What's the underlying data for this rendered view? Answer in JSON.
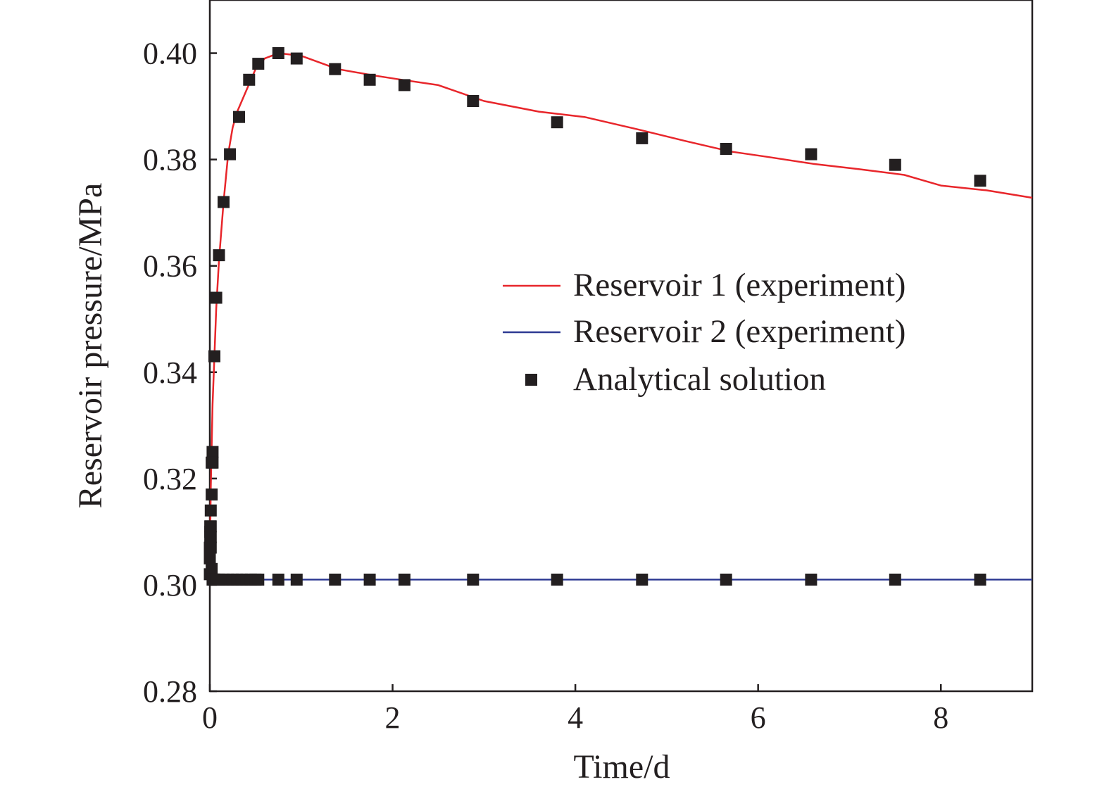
{
  "chart_data": {
    "type": "line",
    "xlabel": "Time/d",
    "ylabel": "Reservoir pressure/MPa",
    "xlim": [
      0,
      9
    ],
    "ylim": [
      0.28,
      0.41
    ],
    "x_ticks": [
      0,
      2,
      4,
      6,
      8
    ],
    "x_tick_labels": [
      "0",
      "2",
      "4",
      "6",
      "8"
    ],
    "y_ticks": [
      0.28,
      0.3,
      0.32,
      0.34,
      0.36,
      0.38,
      0.4
    ],
    "y_tick_labels": [
      "0.28",
      "0.30",
      "0.32",
      "0.34",
      "0.36",
      "0.38",
      "0.40"
    ],
    "grid": false,
    "legend_position": "right-center",
    "series": [
      {
        "name": "Reservoir 1 (experiment)",
        "kind": "line",
        "color": "#e8262b",
        "x": [
          0,
          0.005,
          0.01,
          0.02,
          0.03,
          0.05,
          0.07,
          0.1,
          0.15,
          0.2,
          0.25,
          0.3,
          0.4,
          0.5,
          0.6,
          0.75,
          1.0,
          1.4,
          1.8,
          2.1,
          2.5,
          3.0,
          3.6,
          4.1,
          4.7,
          5.2,
          5.7,
          6.1,
          6.6,
          7.1,
          7.6,
          8.0,
          8.5,
          9.0
        ],
        "y": [
          0.3,
          0.31,
          0.318,
          0.326,
          0.334,
          0.343,
          0.352,
          0.361,
          0.372,
          0.381,
          0.386,
          0.389,
          0.393,
          0.397,
          0.399,
          0.4,
          0.3995,
          0.397,
          0.3958,
          0.395,
          0.394,
          0.391,
          0.389,
          0.388,
          0.3856,
          0.3835,
          0.3815,
          0.3805,
          0.3792,
          0.3782,
          0.3771,
          0.3751,
          0.3742,
          0.3728
        ]
      },
      {
        "name": "Reservoir 2 (experiment)",
        "kind": "line",
        "color": "#2e3a93",
        "x": [
          0,
          0.003,
          0.006,
          0.01,
          0.03,
          0.06,
          9.0
        ],
        "y": [
          0.3055,
          0.309,
          0.307,
          0.304,
          0.3015,
          0.301,
          0.301
        ]
      },
      {
        "name": "Analytical solution",
        "kind": "scatter",
        "marker": "square",
        "color": "#231f20",
        "x": [
          0.01,
          0.01,
          0.02,
          0.02,
          0.03,
          0.03,
          0.05,
          0.07,
          0.1,
          0.15,
          0.22,
          0.32,
          0.43,
          0.53,
          0.75,
          0.95,
          1.37,
          1.75,
          2.13,
          2.88,
          3.8,
          4.73,
          5.65,
          6.58,
          7.5,
          8.43,
          0.0,
          0.0,
          0.0,
          0.005,
          0.005,
          0.005,
          0.01,
          0.01,
          0.02,
          0.03,
          0.05,
          0.07,
          0.1,
          0.15,
          0.2,
          0.25,
          0.3,
          0.35,
          0.4,
          0.45,
          0.5,
          0.53,
          0.75,
          0.95,
          1.37,
          1.75,
          2.13,
          2.88,
          3.8,
          4.73,
          5.65,
          6.58,
          7.5,
          8.43
        ],
        "y": [
          0.311,
          0.314,
          0.317,
          0.323,
          0.325,
          0.323,
          0.343,
          0.354,
          0.362,
          0.372,
          0.381,
          0.388,
          0.395,
          0.398,
          0.4,
          0.399,
          0.397,
          0.395,
          0.394,
          0.391,
          0.387,
          0.384,
          0.382,
          0.381,
          0.379,
          0.376,
          0.302,
          0.305,
          0.307,
          0.309,
          0.31,
          0.311,
          0.309,
          0.307,
          0.303,
          0.301,
          0.301,
          0.301,
          0.301,
          0.301,
          0.301,
          0.301,
          0.301,
          0.301,
          0.301,
          0.301,
          0.301,
          0.301,
          0.301,
          0.301,
          0.301,
          0.301,
          0.301,
          0.301,
          0.301,
          0.301,
          0.301,
          0.301,
          0.301,
          0.301
        ]
      }
    ]
  }
}
